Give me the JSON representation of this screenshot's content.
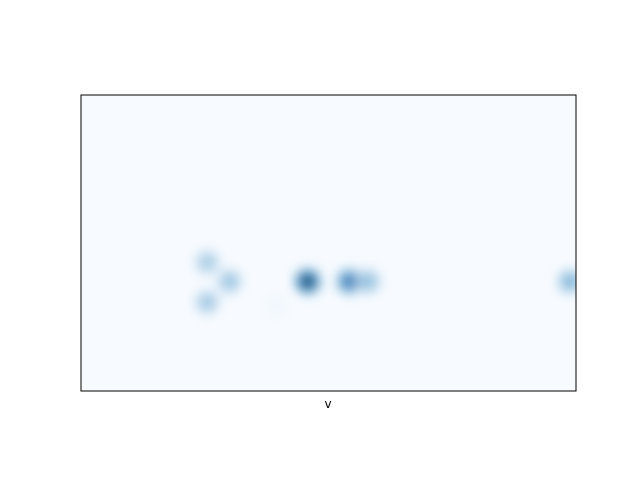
{
  "chart_data": {
    "type": "heatmap",
    "title": "",
    "xlabel": "v",
    "ylabel": "",
    "colormap": "Blues",
    "color_low": "#f7fbff",
    "color_high": "#08306b",
    "x_ticks_visible": false,
    "y_ticks_visible": false,
    "xlim": [
      0,
      1
    ],
    "ylim": [
      0,
      1
    ],
    "blobs": [
      {
        "x": 0.255,
        "y": 0.435,
        "intensity": 0.38
      },
      {
        "x": 0.3,
        "y": 0.37,
        "intensity": 0.42
      },
      {
        "x": 0.255,
        "y": 0.3,
        "intensity": 0.4
      },
      {
        "x": 0.458,
        "y": 0.37,
        "intensity": 1.0
      },
      {
        "x": 0.542,
        "y": 0.37,
        "intensity": 0.78
      },
      {
        "x": 0.58,
        "y": 0.37,
        "intensity": 0.45
      },
      {
        "x": 0.988,
        "y": 0.37,
        "intensity": 0.5
      },
      {
        "x": 0.395,
        "y": 0.29,
        "intensity": 0.04
      }
    ]
  }
}
